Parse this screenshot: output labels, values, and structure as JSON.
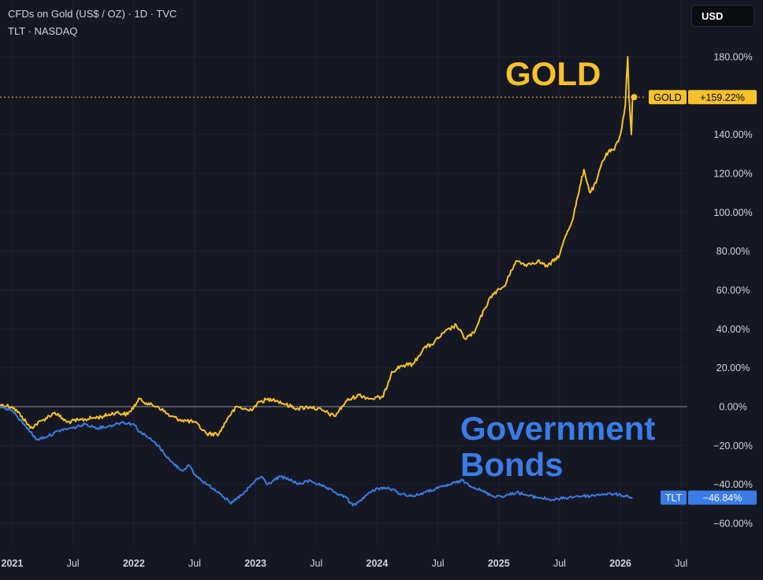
{
  "legend": {
    "line1": "CFDs on Gold (US$ / OZ) · 1D · TVC",
    "line2": "TLT · NASDAQ"
  },
  "currency_button": "USD",
  "colors": {
    "background": "#151823",
    "gold": "#f6c12c",
    "bonds": "#3a7be6",
    "grid": "#1e2230",
    "axis_text": "#d1d4dc"
  },
  "chart_data": {
    "type": "line",
    "title": "CFDs on Gold (US$ / OZ) · 1D · TVC",
    "xlabel": "",
    "ylabel": "",
    "xlim": [
      2020.9,
      2026.55
    ],
    "ylim": [
      -64,
      186
    ],
    "x_ticks": [
      {
        "x": 2021.0,
        "label": "2021",
        "bold": true
      },
      {
        "x": 2021.5,
        "label": "Jul",
        "bold": false
      },
      {
        "x": 2022.0,
        "label": "2022",
        "bold": true
      },
      {
        "x": 2022.5,
        "label": "Jul",
        "bold": false
      },
      {
        "x": 2023.0,
        "label": "2023",
        "bold": true
      },
      {
        "x": 2023.5,
        "label": "Jul",
        "bold": false
      },
      {
        "x": 2024.0,
        "label": "2024",
        "bold": true
      },
      {
        "x": 2024.5,
        "label": "Jul",
        "bold": false
      },
      {
        "x": 2025.0,
        "label": "2025",
        "bold": true
      },
      {
        "x": 2025.5,
        "label": "Jul",
        "bold": false
      },
      {
        "x": 2026.0,
        "label": "2026",
        "bold": true
      },
      {
        "x": 2026.5,
        "label": "Jul",
        "bold": false
      }
    ],
    "y_ticks": [
      {
        "y": 180,
        "label": "180.00%"
      },
      {
        "y": 140,
        "label": "140.00%"
      },
      {
        "y": 120,
        "label": "120.00%"
      },
      {
        "y": 100,
        "label": "100.00%"
      },
      {
        "y": 80,
        "label": "80.00%"
      },
      {
        "y": 60,
        "label": "60.00%"
      },
      {
        "y": 40,
        "label": "40.00%"
      },
      {
        "y": 20,
        "label": "20.00%"
      },
      {
        "y": 0,
        "label": "0.00%"
      },
      {
        "y": -20,
        "label": "−20.00%"
      },
      {
        "y": -40,
        "label": "−40.00%"
      },
      {
        "y": -60,
        "label": "−60.00%"
      }
    ],
    "baseline": 0,
    "series": [
      {
        "name": "GOLD",
        "color": "#f6c12c",
        "last_label": "+159.22%",
        "last_value": 159.22,
        "annotation": [
          "GOLD"
        ],
        "x": [
          2020.9,
          2021.0,
          2021.08,
          2021.15,
          2021.25,
          2021.35,
          2021.45,
          2021.55,
          2021.65,
          2021.75,
          2021.85,
          2021.95,
          2022.05,
          2022.13,
          2022.2,
          2022.3,
          2022.4,
          2022.5,
          2022.6,
          2022.7,
          2022.78,
          2022.85,
          2022.95,
          2023.05,
          2023.15,
          2023.25,
          2023.35,
          2023.45,
          2023.55,
          2023.65,
          2023.75,
          2023.85,
          2023.95,
          2024.05,
          2024.12,
          2024.2,
          2024.3,
          2024.38,
          2024.45,
          2024.55,
          2024.65,
          2024.72,
          2024.8,
          2024.88,
          2024.95,
          2025.05,
          2025.1,
          2025.15,
          2025.22,
          2025.28,
          2025.32,
          2025.4,
          2025.5,
          2025.55,
          2025.6,
          2025.65,
          2025.7,
          2025.75,
          2025.8,
          2025.85,
          2025.9,
          2025.95,
          2026.0,
          2026.04,
          2026.06,
          2026.07,
          2026.08,
          2026.09,
          2026.1
        ],
        "values": [
          1,
          0,
          -5,
          -11,
          -7,
          -3,
          -8,
          -7,
          -6,
          -5,
          -3,
          -4,
          4,
          1,
          0,
          -5,
          -7,
          -8,
          -14,
          -14,
          -5,
          0,
          -2,
          3,
          4,
          1,
          -1,
          0,
          -2,
          -5,
          3,
          6,
          4,
          5,
          18,
          21,
          22,
          30,
          32,
          38,
          42,
          35,
          38,
          50,
          58,
          62,
          70,
          75,
          73,
          74,
          75,
          72,
          78,
          88,
          95,
          108,
          122,
          110,
          115,
          126,
          131,
          132,
          140,
          155,
          180,
          160,
          150,
          140,
          159.22
        ]
      },
      {
        "name": "TLT",
        "color": "#3a7be6",
        "last_label": "−46.84%",
        "last_value": -46.84,
        "annotation": [
          "Government",
          "Bonds"
        ],
        "x": [
          2020.9,
          2021.0,
          2021.05,
          2021.1,
          2021.15,
          2021.2,
          2021.3,
          2021.4,
          2021.5,
          2021.6,
          2021.7,
          2021.8,
          2021.9,
          2022.0,
          2022.05,
          2022.1,
          2022.2,
          2022.3,
          2022.4,
          2022.45,
          2022.5,
          2022.6,
          2022.7,
          2022.8,
          2022.85,
          2022.9,
          2023.0,
          2023.05,
          2023.1,
          2023.2,
          2023.3,
          2023.35,
          2023.45,
          2023.55,
          2023.65,
          2023.75,
          2023.8,
          2023.85,
          2023.9,
          2024.0,
          2024.1,
          2024.2,
          2024.3,
          2024.4,
          2024.5,
          2024.6,
          2024.7,
          2024.75,
          2024.85,
          2024.95,
          2025.05,
          2025.15,
          2025.25,
          2025.35,
          2025.45,
          2025.55,
          2025.65,
          2025.75,
          2025.85,
          2025.95,
          2026.05,
          2026.1
        ],
        "values": [
          0,
          -2,
          -6,
          -9,
          -13,
          -17,
          -15,
          -12,
          -11,
          -9,
          -11,
          -10,
          -8,
          -9,
          -13,
          -15,
          -20,
          -28,
          -33,
          -30,
          -35,
          -40,
          -44,
          -50,
          -47,
          -45,
          -38,
          -36,
          -40,
          -36,
          -38,
          -40,
          -38,
          -41,
          -44,
          -47,
          -51,
          -49,
          -46,
          -42,
          -42,
          -45,
          -46,
          -44,
          -42,
          -40,
          -38,
          -40,
          -43,
          -46,
          -46,
          -44,
          -46,
          -47,
          -48,
          -47,
          -46,
          -46,
          -45,
          -45,
          -46,
          -46.84
        ]
      }
    ]
  }
}
